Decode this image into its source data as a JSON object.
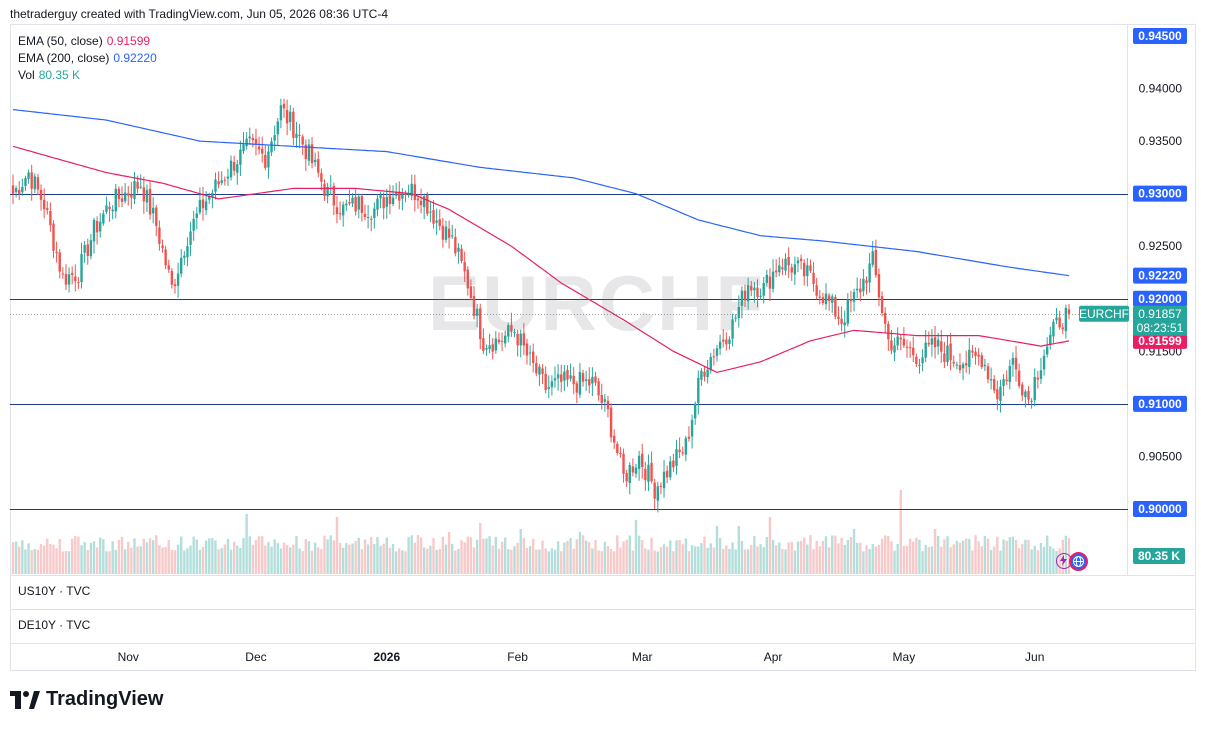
{
  "header": {
    "caption": "thetraderguy created with TradingView.com, Jun 05, 2026 08:36 UTC-4"
  },
  "watermark": "EURCHF",
  "legend": {
    "ema50": {
      "label": "EMA (50, close)",
      "value": "0.91599",
      "color": "#e91e63"
    },
    "ema200": {
      "label": "EMA (200, close)",
      "value": "0.92220",
      "color": "#2962ff"
    },
    "vol": {
      "label": "Vol",
      "value": "80.35 K",
      "color": "#26a69a"
    }
  },
  "panes": {
    "us10y": "US10Y · TVC",
    "de10y": "DE10Y · TVC"
  },
  "footer": {
    "brand": "TradingView"
  },
  "colors": {
    "up": "#26a69a",
    "down": "#ef5350",
    "up_vol": "#b2dfdb",
    "down_vol": "#f8c9c9",
    "hline": "#1e3a8a",
    "price_tag": "#2962ff",
    "symbol_tag": "#26a69a",
    "ema50": "#e91e63",
    "ema200": "#2962ff"
  },
  "chart_data": {
    "type": "candlestick",
    "symbol": "EURCHF",
    "y_range": [
      0.8965,
      0.946
    ],
    "y_ticks": [
      "0.94500",
      "0.94000",
      "0.93500",
      "0.93000",
      "0.92500",
      "0.92000",
      "0.91500",
      "0.91000",
      "0.90500",
      "0.90000"
    ],
    "x_labels": [
      "Nov",
      "Dec",
      "2026",
      "Feb",
      "Mar",
      "Apr",
      "May",
      "Jun"
    ],
    "horizontal_levels": [
      "0.93000",
      "0.92000",
      "0.91000",
      "0.90000"
    ],
    "price_tags": [
      {
        "text": "0.94500",
        "value": 0.945,
        "style": "blue"
      },
      {
        "text": "0.93000",
        "value": 0.93,
        "style": "blue"
      },
      {
        "text": "0.92220",
        "value": 0.9222,
        "style": "ema200"
      },
      {
        "text": "0.92000",
        "value": 0.92,
        "style": "blue"
      },
      {
        "text": "0.91599",
        "value": 0.91599,
        "style": "ema50"
      },
      {
        "text": "0.91000",
        "value": 0.91,
        "style": "blue"
      },
      {
        "text": "0.90000",
        "value": 0.9,
        "style": "blue"
      }
    ],
    "last": {
      "symbol": "EURCHF",
      "price": "0.91857",
      "countdown": "08:23:51",
      "value": 0.91857
    },
    "volume_tag": "80.35 K",
    "ema50_last": 0.91599,
    "ema200_last": 0.9222,
    "close_anchors": [
      [
        0,
        0.93
      ],
      [
        5,
        0.932
      ],
      [
        10,
        0.929
      ],
      [
        16,
        0.922
      ],
      [
        21,
        0.9225
      ],
      [
        26,
        0.9265
      ],
      [
        31,
        0.929
      ],
      [
        36,
        0.93
      ],
      [
        41,
        0.931
      ],
      [
        46,
        0.927
      ],
      [
        51,
        0.921
      ],
      [
        56,
        0.926
      ],
      [
        61,
        0.929
      ],
      [
        66,
        0.931
      ],
      [
        71,
        0.933
      ],
      [
        76,
        0.9345
      ],
      [
        81,
        0.9335
      ],
      [
        86,
        0.938
      ],
      [
        91,
        0.936
      ],
      [
        96,
        0.933
      ],
      [
        101,
        0.93
      ],
      [
        106,
        0.9285
      ],
      [
        111,
        0.929
      ],
      [
        116,
        0.9285
      ],
      [
        121,
        0.93
      ],
      [
        126,
        0.9305
      ],
      [
        131,
        0.93
      ],
      [
        136,
        0.9275
      ],
      [
        141,
        0.9255
      ],
      [
        146,
        0.9215
      ],
      [
        151,
        0.916
      ],
      [
        156,
        0.916
      ],
      [
        161,
        0.917
      ],
      [
        166,
        0.914
      ],
      [
        171,
        0.9115
      ],
      [
        176,
        0.912
      ],
      [
        181,
        0.912
      ],
      [
        186,
        0.912
      ],
      [
        191,
        0.909
      ],
      [
        196,
        0.903
      ],
      [
        201,
        0.905
      ],
      [
        206,
        0.902
      ],
      [
        211,
        0.904
      ],
      [
        216,
        0.906
      ],
      [
        221,
        0.913
      ],
      [
        226,
        0.9155
      ],
      [
        231,
        0.9175
      ],
      [
        236,
        0.9215
      ],
      [
        241,
        0.921
      ],
      [
        246,
        0.9235
      ],
      [
        251,
        0.923
      ],
      [
        256,
        0.922
      ],
      [
        261,
        0.92
      ],
      [
        266,
        0.918
      ],
      [
        271,
        0.9205
      ],
      [
        276,
        0.9235
      ],
      [
        281,
        0.916
      ],
      [
        286,
        0.9155
      ],
      [
        291,
        0.9145
      ],
      [
        296,
        0.9155
      ],
      [
        301,
        0.9145
      ],
      [
        306,
        0.914
      ],
      [
        311,
        0.9145
      ],
      [
        316,
        0.911
      ],
      [
        321,
        0.914
      ],
      [
        326,
        0.9105
      ],
      [
        331,
        0.915
      ],
      [
        336,
        0.918
      ],
      [
        339,
        0.91857
      ]
    ],
    "ema50_anchors": [
      [
        0,
        0.9345
      ],
      [
        30,
        0.932
      ],
      [
        48,
        0.931
      ],
      [
        66,
        0.9295
      ],
      [
        90,
        0.9305
      ],
      [
        110,
        0.9305
      ],
      [
        128,
        0.93
      ],
      [
        140,
        0.9285
      ],
      [
        160,
        0.925
      ],
      [
        176,
        0.9215
      ],
      [
        196,
        0.918
      ],
      [
        212,
        0.915
      ],
      [
        226,
        0.913
      ],
      [
        240,
        0.914
      ],
      [
        256,
        0.916
      ],
      [
        270,
        0.917
      ],
      [
        290,
        0.9165
      ],
      [
        310,
        0.9165
      ],
      [
        330,
        0.9155
      ],
      [
        339,
        0.91599
      ]
    ],
    "ema200_anchors": [
      [
        0,
        0.938
      ],
      [
        30,
        0.937
      ],
      [
        60,
        0.935
      ],
      [
        90,
        0.9345
      ],
      [
        120,
        0.934
      ],
      [
        150,
        0.9325
      ],
      [
        180,
        0.9315
      ],
      [
        200,
        0.93
      ],
      [
        220,
        0.9275
      ],
      [
        240,
        0.926
      ],
      [
        260,
        0.9255
      ],
      [
        290,
        0.9245
      ],
      [
        320,
        0.923
      ],
      [
        339,
        0.9222
      ]
    ],
    "volume_spikes": [
      [
        75,
        2.0
      ],
      [
        104,
        1.9
      ],
      [
        140,
        1.4
      ],
      [
        150,
        1.7
      ],
      [
        163,
        1.5
      ],
      [
        182,
        1.4
      ],
      [
        200,
        1.8
      ],
      [
        226,
        1.6
      ],
      [
        233,
        1.6
      ],
      [
        243,
        1.9
      ],
      [
        270,
        1.5
      ],
      [
        285,
        2.8
      ],
      [
        296,
        1.5
      ]
    ]
  }
}
